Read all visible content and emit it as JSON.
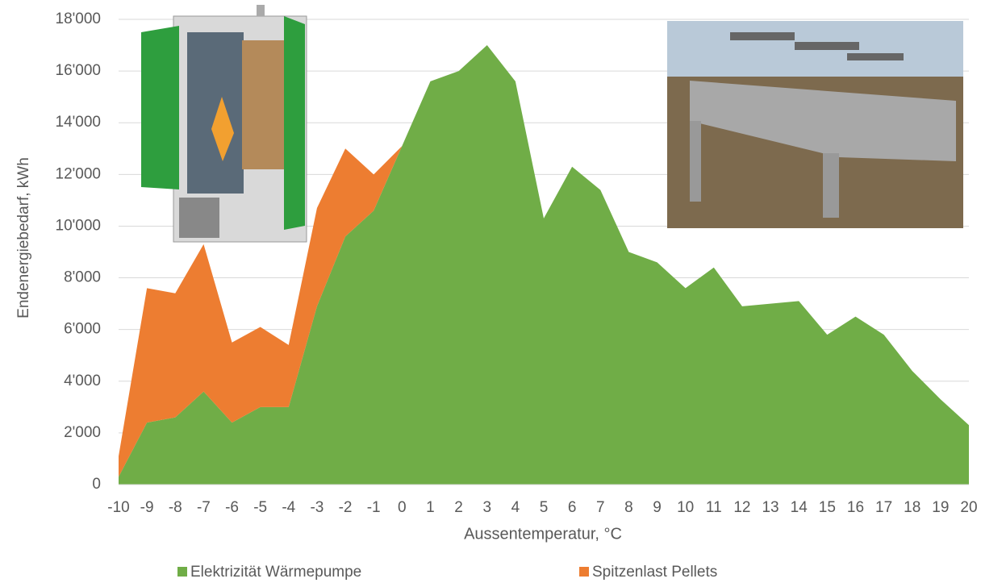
{
  "chart_data": {
    "type": "stacked_area",
    "x_label": "Aussentemperatur, °C",
    "y_label": "Endenergiebedarf, kWh",
    "x": [
      -10,
      -9,
      -8,
      -7,
      -6,
      -5,
      -4,
      -3,
      -2,
      -1,
      0,
      1,
      2,
      3,
      4,
      5,
      6,
      7,
      8,
      9,
      10,
      11,
      12,
      13,
      14,
      15,
      16,
      17,
      18,
      19,
      20
    ],
    "xlim": [
      -10,
      20
    ],
    "xticks": [
      -10,
      -9,
      -8,
      -7,
      -6,
      -5,
      -4,
      -3,
      -2,
      -1,
      0,
      1,
      2,
      3,
      4,
      5,
      6,
      7,
      8,
      9,
      10,
      11,
      12,
      13,
      14,
      15,
      16,
      17,
      18,
      19,
      20
    ],
    "ylim": [
      0,
      18000
    ],
    "yticks": [
      0,
      {
        "value": 2000,
        "label": "2'000"
      },
      {
        "value": 4000,
        "label": "4'000"
      },
      {
        "value": 6000,
        "label": "6'000"
      },
      {
        "value": 8000,
        "label": "8'000"
      },
      {
        "value": 10000,
        "label": "10'000"
      },
      {
        "value": 12000,
        "label": "12'000"
      },
      {
        "value": 14000,
        "label": "14'000"
      },
      {
        "value": 16000,
        "label": "16'000"
      },
      {
        "value": 18000,
        "label": "18'000"
      }
    ],
    "grid": true,
    "legend": "bottom",
    "series": [
      {
        "name": "Elektrizität Wärmepumpe",
        "color": "#70ad47",
        "values": [
          300,
          2400,
          2600,
          3600,
          2400,
          3000,
          3000,
          6900,
          9600,
          10600,
          13100,
          15600,
          16000,
          17000,
          15600,
          10300,
          12300,
          11400,
          9000,
          8600,
          7600,
          8400,
          6900,
          7000,
          7100,
          5800,
          6500,
          5800,
          4400,
          3300,
          2300
        ]
      },
      {
        "name": "Spitzenlast Pellets",
        "color": "#ed7d31",
        "values": [
          800,
          5200,
          4800,
          5700,
          3100,
          3100,
          2400,
          3800,
          3400,
          1400,
          0,
          0,
          0,
          0,
          0,
          0,
          0,
          0,
          0,
          0,
          0,
          0,
          0,
          0,
          0,
          0,
          0,
          0,
          0,
          0,
          0
        ]
      }
    ]
  }
}
